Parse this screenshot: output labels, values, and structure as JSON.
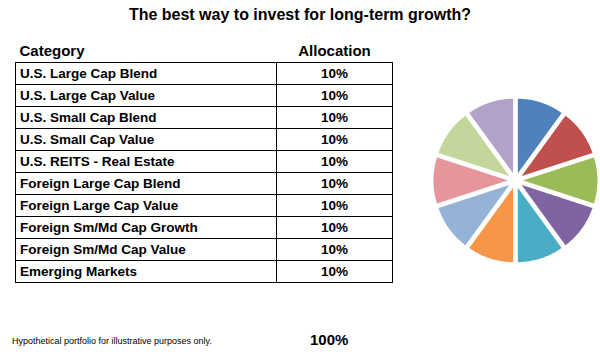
{
  "chart_data": {
    "type": "pie",
    "title": "The best way to invest for long-term growth?",
    "categories": [
      "U.S. Large Cap Blend",
      "U.S. Large Cap Value",
      "U.S. Small Cap Blend",
      "U.S. Small Cap Value",
      "U.S. REITS - Real Estate",
      "Foreign Large Cap Blend",
      "Foreign Large Cap Value",
      "Foreign Sm/Md Cap Growth",
      "Foreign Sm/Md Cap Value",
      "Emerging Markets"
    ],
    "values": [
      10,
      10,
      10,
      10,
      10,
      10,
      10,
      10,
      10,
      10
    ],
    "value_labels": [
      "10%",
      "10%",
      "10%",
      "10%",
      "10%",
      "10%",
      "10%",
      "10%",
      "10%",
      "10%"
    ],
    "colors": [
      "#4f81bd",
      "#c0504d",
      "#9bbb59",
      "#8064a2",
      "#4bacc6",
      "#f79646",
      "#95b3d7",
      "#e6959b",
      "#c3d69b",
      "#b3a2c7"
    ],
    "annotations": [
      "Hypothetical portfolio for illustrative purposes only."
    ]
  },
  "table": {
    "columns": [
      "Category",
      "Allocation"
    ],
    "total": "100%"
  }
}
